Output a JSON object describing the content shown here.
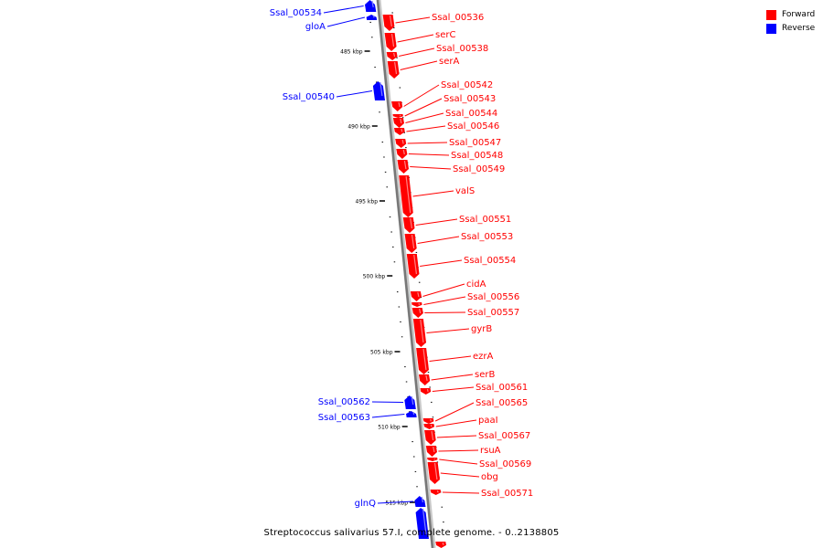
{
  "legend": {
    "forward": {
      "label": "Forward",
      "color": "#ff0000"
    },
    "reverse": {
      "label": "Reverse",
      "color": "#0000ff"
    }
  },
  "caption": "Streptococcus salivarius 57.I, complete genome. - 0..2138805",
  "scale_labels": [
    "485 kbp",
    "490 kbp",
    "495 kbp",
    "500 kbp",
    "505 kbp",
    "510 kbp",
    "515 kbp"
  ],
  "reverse_genes": [
    "Ssal_00534",
    "gloA",
    "Ssal_00540",
    "Ssal_00562",
    "Ssal_00563",
    "glnQ"
  ],
  "forward_genes": [
    "Ssal_00536",
    "serC",
    "Ssal_00538",
    "serA",
    "Ssal_00542",
    "Ssal_00543",
    "Ssal_00544",
    "Ssal_00546",
    "Ssal_00547",
    "Ssal_00548",
    "Ssal_00549",
    "valS",
    "Ssal_00551",
    "Ssal_00553",
    "Ssal_00554",
    "cidA",
    "Ssal_00556",
    "Ssal_00557",
    "gyrB",
    "ezrA",
    "serB",
    "Ssal_00561",
    "Ssal_00565",
    "paaI",
    "Ssal_00567",
    "rsuA",
    "Ssal_00569",
    "obg",
    "Ssal_00571"
  ]
}
